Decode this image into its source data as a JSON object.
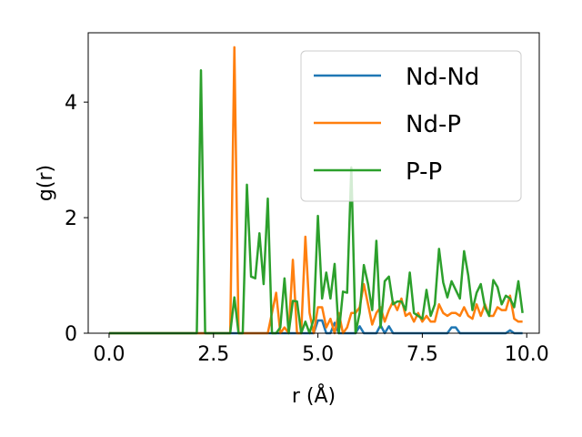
{
  "chart_data": {
    "type": "line",
    "title": "",
    "xlabel": "r (Å)",
    "ylabel": "g(r)",
    "xlim": [
      -0.5,
      10.3
    ],
    "ylim": [
      0,
      5.2
    ],
    "xticks": [
      0.0,
      2.5,
      5.0,
      7.5,
      10.0
    ],
    "xtick_labels": [
      "0.0",
      "2.5",
      "5.0",
      "7.5",
      "10.0"
    ],
    "yticks": [
      0,
      2,
      4
    ],
    "ytick_labels": [
      "0",
      "2",
      "4"
    ],
    "grid": false,
    "legend_position": "top-right",
    "colors": {
      "Nd-Nd": "#1f77b4",
      "Nd-P": "#ff7f0e",
      "P-P": "#2ca02c"
    },
    "x": [
      0.0,
      0.1,
      0.2,
      0.3,
      0.4,
      0.5,
      0.6,
      0.7,
      0.8,
      0.9,
      1.0,
      1.1,
      1.2,
      1.3,
      1.4,
      1.5,
      1.6,
      1.7,
      1.8,
      1.9,
      2.0,
      2.1,
      2.2,
      2.3,
      2.4,
      2.5,
      2.6,
      2.7,
      2.8,
      2.9,
      3.0,
      3.1,
      3.2,
      3.3,
      3.4,
      3.5,
      3.6,
      3.7,
      3.8,
      3.9,
      4.0,
      4.1,
      4.2,
      4.3,
      4.4,
      4.5,
      4.6,
      4.7,
      4.8,
      4.9,
      5.0,
      5.1,
      5.2,
      5.3,
      5.4,
      5.5,
      5.6,
      5.7,
      5.8,
      5.9,
      6.0,
      6.1,
      6.2,
      6.3,
      6.4,
      6.5,
      6.6,
      6.7,
      6.8,
      6.9,
      7.0,
      7.1,
      7.2,
      7.3,
      7.4,
      7.5,
      7.6,
      7.7,
      7.8,
      7.9,
      8.0,
      8.1,
      8.2,
      8.3,
      8.4,
      8.5,
      8.6,
      8.7,
      8.8,
      8.9,
      9.0,
      9.1,
      9.2,
      9.3,
      9.4,
      9.5,
      9.6,
      9.7,
      9.8,
      9.9
    ],
    "series": [
      {
        "name": "Nd-Nd",
        "values": [
          0,
          0,
          0,
          0,
          0,
          0,
          0,
          0,
          0,
          0,
          0,
          0,
          0,
          0,
          0,
          0,
          0,
          0,
          0,
          0,
          0,
          0,
          0,
          0,
          0,
          0,
          0,
          0,
          0,
          0,
          0,
          0,
          0,
          0,
          0,
          0,
          0,
          0,
          0,
          0,
          0,
          0,
          0,
          0,
          0,
          0,
          0,
          0,
          0,
          0,
          0.22,
          0.22,
          0,
          0,
          0.18,
          0,
          0,
          0,
          0,
          0,
          0.12,
          0,
          0,
          0,
          0,
          0.14,
          0,
          0.12,
          0,
          0,
          0,
          0,
          0,
          0,
          0,
          0,
          0,
          0,
          0,
          0,
          0,
          0,
          0.1,
          0.1,
          0,
          0,
          0,
          0,
          0,
          0,
          0,
          0,
          0,
          0,
          0,
          0,
          0.05,
          0,
          0,
          0
        ]
      },
      {
        "name": "Nd-P",
        "values": [
          0,
          0,
          0,
          0,
          0,
          0,
          0,
          0,
          0,
          0,
          0,
          0,
          0,
          0,
          0,
          0,
          0,
          0,
          0,
          0,
          0,
          0,
          0,
          0,
          0,
          0,
          0,
          0,
          0,
          0,
          4.95,
          0,
          0,
          0,
          0,
          0,
          0,
          0,
          0,
          0.35,
          0.7,
          0,
          0.1,
          0,
          1.27,
          0,
          0,
          1.67,
          0.35,
          0,
          0.45,
          0.45,
          0.1,
          0.25,
          0,
          0.35,
          0,
          0.1,
          0.35,
          0.35,
          0.45,
          0.85,
          0.5,
          0.15,
          0.35,
          0.45,
          0.2,
          0.4,
          0.55,
          0.4,
          0.6,
          0.3,
          0.35,
          0.2,
          0.35,
          0.2,
          0.3,
          0.2,
          0.2,
          0.5,
          0.35,
          0.3,
          0.35,
          0.35,
          0.3,
          0.45,
          0.3,
          0.25,
          0.5,
          0.3,
          0.5,
          0.3,
          0.3,
          0.45,
          0.4,
          0.4,
          0.65,
          0.25,
          0.2,
          0.2
        ]
      },
      {
        "name": "P-P",
        "values": [
          0,
          0,
          0,
          0,
          0,
          0,
          0,
          0,
          0,
          0,
          0,
          0,
          0,
          0,
          0,
          0,
          0,
          0,
          0,
          0,
          0,
          0,
          4.55,
          0,
          0,
          0,
          0,
          0,
          0,
          0,
          0.62,
          0,
          0,
          2.57,
          0.98,
          0.95,
          1.73,
          0.85,
          2.33,
          0,
          0,
          0.1,
          0.95,
          0,
          0.56,
          0.55,
          0,
          0.2,
          0,
          0.25,
          2.03,
          0.6,
          1.05,
          0.6,
          1.2,
          0,
          0.72,
          0.7,
          2.87,
          0,
          0.35,
          1.18,
          0.85,
          0.4,
          1.6,
          0.1,
          0.9,
          0.98,
          0.5,
          0.55,
          0.55,
          0.4,
          1.05,
          0.35,
          0.3,
          0.25,
          0.75,
          0.3,
          0.5,
          1.46,
          0.88,
          0.62,
          0.9,
          0.75,
          0.6,
          1.42,
          1.0,
          0.4,
          0.7,
          0.85,
          0.45,
          0.3,
          0.92,
          0.8,
          0.5,
          0.65,
          0.6,
          0.45,
          0.9,
          0.35
        ]
      }
    ]
  }
}
